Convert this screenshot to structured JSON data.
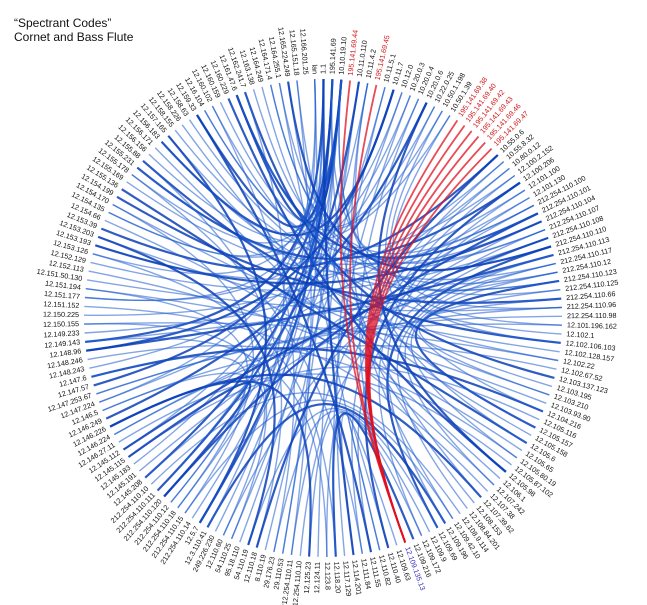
{
  "title": {
    "line1": "“Spectrant Codes”",
    "line2": "Cornet and Bass Flute"
  },
  "colors": {
    "background": "#ffffff",
    "edge_blue": "#1e5bd0",
    "edge_blue_dark": "#0b3fb8",
    "edge_red": "#e01020",
    "label_default": "#111111",
    "label_red": "#d01818",
    "label_purple": "#3a2ec0"
  },
  "nodes": [
    {
      "label": "lan",
      "color": "default"
    },
    {
      "label": "1.1",
      "color": "default"
    },
    {
      "label": "195.141.69",
      "color": "default"
    },
    {
      "label": "10.10.19.10",
      "color": "default"
    },
    {
      "label": "195.141.69.44",
      "color": "red"
    },
    {
      "label": "10.11.0.110",
      "color": "default"
    },
    {
      "label": "10.11.4.2",
      "color": "default"
    },
    {
      "label": "195.141.69.45",
      "color": "red"
    },
    {
      "label": "10.11.5.1",
      "color": "default"
    },
    {
      "label": "10.11.7",
      "color": "default"
    },
    {
      "label": "10.12.0",
      "color": "default"
    },
    {
      "label": "10.20.0.3",
      "color": "default"
    },
    {
      "label": "10.20.0.4",
      "color": "default"
    },
    {
      "label": "10.20.0.6",
      "color": "default"
    },
    {
      "label": "10.22.0.25",
      "color": "default"
    },
    {
      "label": "10.50.1.198",
      "color": "default"
    },
    {
      "label": "10.50.1.39",
      "color": "default"
    },
    {
      "label": "195.141.69.38",
      "color": "red"
    },
    {
      "label": "195.141.69.40",
      "color": "red"
    },
    {
      "label": "195.141.69.42",
      "color": "red"
    },
    {
      "label": "195.141.69.43",
      "color": "red"
    },
    {
      "label": "195.141.69.46",
      "color": "red"
    },
    {
      "label": "195.141.69.47",
      "color": "red"
    },
    {
      "label": "10.55.0.6",
      "color": "default"
    },
    {
      "label": "10.55.8.32",
      "color": "default"
    },
    {
      "label": "10.80.0.12",
      "color": "default"
    },
    {
      "label": "12.100.2.152",
      "color": "default"
    },
    {
      "label": "12.100.206",
      "color": "default"
    },
    {
      "label": "12.101.100",
      "color": "default"
    },
    {
      "label": "12.101.130",
      "color": "default"
    },
    {
      "label": "212.254.110.100",
      "color": "default"
    },
    {
      "label": "212.254.110.101",
      "color": "default"
    },
    {
      "label": "212.254.110.104",
      "color": "default"
    },
    {
      "label": "212.254.110.107",
      "color": "default"
    },
    {
      "label": "212.254.110.108",
      "color": "default"
    },
    {
      "label": "212.254.110.110",
      "color": "default"
    },
    {
      "label": "212.254.110.113",
      "color": "default"
    },
    {
      "label": "212.254.110.117",
      "color": "default"
    },
    {
      "label": "212.254.110.12",
      "color": "default"
    },
    {
      "label": "212.254.110.123",
      "color": "default"
    },
    {
      "label": "212.254.110.125",
      "color": "default"
    },
    {
      "label": "212.254.110.66",
      "color": "default"
    },
    {
      "label": "212.254.110.96",
      "color": "default"
    },
    {
      "label": "212.254.110.98",
      "color": "default"
    },
    {
      "label": "12.101.196.162",
      "color": "default"
    },
    {
      "label": "12.102.1",
      "color": "default"
    },
    {
      "label": "12.102.106.103",
      "color": "default"
    },
    {
      "label": "12.102.128.157",
      "color": "default"
    },
    {
      "label": "12.102.22",
      "color": "default"
    },
    {
      "label": "12.102.67.52",
      "color": "default"
    },
    {
      "label": "12.103.137.123",
      "color": "default"
    },
    {
      "label": "12.103.195",
      "color": "default"
    },
    {
      "label": "12.103.210",
      "color": "default"
    },
    {
      "label": "12.103.93.90",
      "color": "default"
    },
    {
      "label": "12.104.216",
      "color": "default"
    },
    {
      "label": "12.105.116",
      "color": "default"
    },
    {
      "label": "12.105.157",
      "color": "default"
    },
    {
      "label": "12.105.158",
      "color": "default"
    },
    {
      "label": "12.105.6",
      "color": "default"
    },
    {
      "label": "12.105.65",
      "color": "default"
    },
    {
      "label": "12.105.80.19",
      "color": "default"
    },
    {
      "label": "12.105.87.102",
      "color": "default"
    },
    {
      "label": "12.105.98",
      "color": "default"
    },
    {
      "label": "12.106.1",
      "color": "default"
    },
    {
      "label": "12.107.242",
      "color": "default"
    },
    {
      "label": "12.107.38",
      "color": "default"
    },
    {
      "label": "12.107.39.62",
      "color": "default"
    },
    {
      "label": "12.108.153",
      "color": "default"
    },
    {
      "label": "12.108.84.201",
      "color": "default"
    },
    {
      "label": "12.108.9.114",
      "color": "default"
    },
    {
      "label": "12.109.42.10",
      "color": "default"
    },
    {
      "label": "12.109.196",
      "color": "default"
    },
    {
      "label": "12.109.69",
      "color": "default"
    },
    {
      "label": "12.109.9",
      "color": "default"
    },
    {
      "label": "12.109.172",
      "color": "default"
    },
    {
      "label": "12.109.216",
      "color": "default"
    },
    {
      "label": "12.109.135.13",
      "color": "purple"
    },
    {
      "label": "12.109.63",
      "color": "default"
    },
    {
      "label": "12.110.40",
      "color": "default"
    },
    {
      "label": "12.110.82",
      "color": "default"
    },
    {
      "label": "12.111.55",
      "color": "default"
    },
    {
      "label": "12.111.84",
      "color": "default"
    },
    {
      "label": "12.114.201",
      "color": "default"
    },
    {
      "label": "12.117.129",
      "color": "default"
    },
    {
      "label": "12.118.20",
      "color": "default"
    },
    {
      "label": "12.123.8",
      "color": "default"
    },
    {
      "label": "12.124.11",
      "color": "default"
    },
    {
      "label": "12.125.23",
      "color": "default"
    },
    {
      "label": "212.254.110.10",
      "color": "default"
    },
    {
      "label": "212.254.110.11",
      "color": "default"
    },
    {
      "label": "29.110.53",
      "color": "default"
    },
    {
      "label": "29.176.23",
      "color": "default"
    },
    {
      "label": "8.110.19",
      "color": "default"
    },
    {
      "label": "12.110.18",
      "color": "default"
    },
    {
      "label": "54.110.19",
      "color": "default"
    },
    {
      "label": "95.18.110",
      "color": "default"
    },
    {
      "label": "54.110.25",
      "color": "default"
    },
    {
      "label": "12.110.60",
      "color": "default"
    },
    {
      "label": "249.226.230",
      "color": "default"
    },
    {
      "label": "12.3.110.41",
      "color": "default"
    },
    {
      "label": "12.5.7",
      "color": "default"
    },
    {
      "label": "212.254.110.14",
      "color": "default"
    },
    {
      "label": "212.254.110.15",
      "color": "default"
    },
    {
      "label": "212.254.110.18",
      "color": "default"
    },
    {
      "label": "212.254.110.12",
      "color": "default"
    },
    {
      "label": "212.254.110.120",
      "color": "default"
    },
    {
      "label": "212.254.110.111",
      "color": "default"
    },
    {
      "label": "212.254.110.10",
      "color": "default"
    },
    {
      "label": "12.145.208",
      "color": "default"
    },
    {
      "label": "12.145.191",
      "color": "default"
    },
    {
      "label": "12.145.183",
      "color": "default"
    },
    {
      "label": "12.145.115",
      "color": "default"
    },
    {
      "label": "12.145.112",
      "color": "default"
    },
    {
      "label": "12.146.27.11",
      "color": "default"
    },
    {
      "label": "12.146.224",
      "color": "default"
    },
    {
      "label": "12.146.226",
      "color": "default"
    },
    {
      "label": "12.146.249",
      "color": "default"
    },
    {
      "label": "12.146.5",
      "color": "default"
    },
    {
      "label": "12.147.224",
      "color": "default"
    },
    {
      "label": "12.147.253.67",
      "color": "default"
    },
    {
      "label": "12.147.57",
      "color": "default"
    },
    {
      "label": "12.147.6",
      "color": "default"
    },
    {
      "label": "12.148.243",
      "color": "default"
    },
    {
      "label": "12.148.246",
      "color": "default"
    },
    {
      "label": "12.148.96",
      "color": "default"
    },
    {
      "label": "12.149.143",
      "color": "default"
    },
    {
      "label": "12.149.233",
      "color": "default"
    },
    {
      "label": "12.150.155",
      "color": "default"
    },
    {
      "label": "12.150.225",
      "color": "default"
    },
    {
      "label": "12.151.152",
      "color": "default"
    },
    {
      "label": "12.151.177",
      "color": "default"
    },
    {
      "label": "12.151.194",
      "color": "default"
    },
    {
      "label": "12.151.50.130",
      "color": "default"
    },
    {
      "label": "12.152.113",
      "color": "default"
    },
    {
      "label": "12.152.129",
      "color": "default"
    },
    {
      "label": "12.153.126",
      "color": "default"
    },
    {
      "label": "12.153.193",
      "color": "default"
    },
    {
      "label": "12.153.203",
      "color": "default"
    },
    {
      "label": "12.153.39",
      "color": "default"
    },
    {
      "label": "12.154.66",
      "color": "default"
    },
    {
      "label": "12.154.135",
      "color": "default"
    },
    {
      "label": "12.154.170",
      "color": "default"
    },
    {
      "label": "12.154.199",
      "color": "default"
    },
    {
      "label": "12.155.136",
      "color": "default"
    },
    {
      "label": "12.155.169",
      "color": "default"
    },
    {
      "label": "12.155.178",
      "color": "default"
    },
    {
      "label": "12.155.231",
      "color": "default"
    },
    {
      "label": "12.155.88",
      "color": "default"
    },
    {
      "label": "12.156.156",
      "color": "default"
    },
    {
      "label": "12.156.171",
      "color": "default"
    },
    {
      "label": "12.156.183",
      "color": "default"
    },
    {
      "label": "12.157.165",
      "color": "default"
    },
    {
      "label": "12.158.155",
      "color": "default"
    },
    {
      "label": "12.158.226",
      "color": "default"
    },
    {
      "label": "12.158.63",
      "color": "default"
    },
    {
      "label": "12.159.33",
      "color": "default"
    },
    {
      "label": "12.16.104",
      "color": "default"
    },
    {
      "label": "12.160.102",
      "color": "default"
    },
    {
      "label": "12.160.159",
      "color": "default"
    },
    {
      "label": "12.160.229",
      "color": "default"
    },
    {
      "label": "12.161.47.6",
      "color": "default"
    },
    {
      "label": "12.162.241.7",
      "color": "default"
    },
    {
      "label": "12.163.138",
      "color": "default"
    },
    {
      "label": "12.164.249",
      "color": "default"
    },
    {
      "label": "12.164.171.4",
      "color": "default"
    },
    {
      "label": "12.164.255.1",
      "color": "default"
    },
    {
      "label": "12.165.224.249",
      "color": "default"
    },
    {
      "label": "12.165.151.18",
      "color": "default"
    },
    {
      "label": "12.166.201.25",
      "color": "default"
    }
  ],
  "edges": [
    [
      3,
      108
    ],
    [
      3,
      112
    ],
    [
      3,
      95
    ],
    [
      3,
      90
    ],
    [
      3,
      120
    ],
    [
      3,
      130
    ],
    [
      3,
      140
    ],
    [
      3,
      150
    ],
    [
      3,
      160
    ],
    [
      3,
      166
    ],
    [
      3,
      40
    ],
    [
      3,
      44
    ],
    [
      2,
      100
    ],
    [
      2,
      104
    ],
    [
      2,
      110
    ],
    [
      2,
      145
    ],
    [
      2,
      155
    ],
    [
      2,
      35
    ],
    [
      1,
      98
    ],
    [
      1,
      101
    ],
    [
      1,
      125
    ],
    [
      1,
      135
    ],
    [
      5,
      86
    ],
    [
      5,
      92
    ],
    [
      5,
      106
    ],
    [
      6,
      103
    ],
    [
      6,
      70
    ],
    [
      8,
      83
    ],
    [
      9,
      150
    ],
    [
      10,
      140
    ],
    [
      11,
      130
    ],
    [
      12,
      122
    ],
    [
      13,
      116
    ],
    [
      14,
      162
    ],
    [
      15,
      158
    ],
    [
      16,
      148
    ],
    [
      23,
      138
    ],
    [
      24,
      128
    ],
    [
      25,
      118
    ],
    [
      26,
      156
    ],
    [
      27,
      146
    ],
    [
      28,
      136
    ],
    [
      29,
      126
    ],
    [
      30,
      165
    ],
    [
      31,
      160
    ],
    [
      32,
      152
    ],
    [
      33,
      144
    ],
    [
      34,
      134
    ],
    [
      36,
      124
    ],
    [
      37,
      114
    ],
    [
      38,
      164
    ],
    [
      39,
      154
    ],
    [
      41,
      142
    ],
    [
      42,
      132
    ],
    [
      43,
      119
    ],
    [
      30,
      109
    ],
    [
      31,
      105
    ],
    [
      32,
      97
    ],
    [
      33,
      88
    ],
    [
      34,
      80
    ],
    [
      35,
      72
    ],
    [
      36,
      68
    ],
    [
      37,
      64
    ],
    [
      38,
      60
    ],
    [
      39,
      56
    ],
    [
      40,
      52
    ],
    [
      41,
      48
    ],
    [
      45,
      157
    ],
    [
      46,
      147
    ],
    [
      47,
      137
    ],
    [
      48,
      127
    ],
    [
      49,
      117
    ],
    [
      50,
      161
    ],
    [
      51,
      151
    ],
    [
      52,
      141
    ],
    [
      53,
      131
    ],
    [
      54,
      121
    ],
    [
      55,
      111
    ],
    [
      56,
      163
    ],
    [
      57,
      153
    ],
    [
      58,
      143
    ],
    [
      59,
      133
    ],
    [
      60,
      123
    ],
    [
      61,
      113
    ],
    [
      62,
      159
    ],
    [
      63,
      149
    ],
    [
      64,
      139
    ],
    [
      65,
      129
    ],
    [
      66,
      115
    ],
    [
      67,
      167
    ],
    [
      69,
      107
    ],
    [
      70,
      102
    ],
    [
      71,
      99
    ],
    [
      72,
      94
    ],
    [
      73,
      91
    ],
    [
      74,
      87
    ],
    [
      75,
      84
    ],
    [
      77,
      82
    ],
    [
      78,
      79
    ],
    [
      79,
      165
    ],
    [
      80,
      155
    ],
    [
      81,
      145
    ],
    [
      84,
      135
    ],
    [
      85,
      125
    ],
    [
      87,
      115
    ],
    [
      89,
      167
    ],
    [
      91,
      157
    ],
    [
      93,
      147
    ],
    [
      94,
      137
    ],
    [
      96,
      127
    ],
    [
      97,
      117
    ],
    [
      99,
      161
    ],
    [
      100,
      151
    ],
    [
      102,
      141
    ],
    [
      103,
      131
    ],
    [
      104,
      121
    ],
    [
      105,
      111
    ],
    [
      0,
      90
    ],
    [
      0,
      106
    ],
    [
      0,
      118
    ],
    [
      1,
      82
    ],
    [
      2,
      66
    ],
    [
      6,
      58
    ],
    [
      8,
      100
    ],
    [
      9,
      124
    ],
    [
      10,
      96
    ],
    [
      11,
      84
    ],
    [
      12,
      76
    ],
    [
      13,
      62
    ],
    [
      14,
      54
    ],
    [
      15,
      46
    ],
    [
      16,
      42
    ],
    [
      23,
      93
    ],
    [
      24,
      89
    ],
    [
      25,
      85
    ],
    [
      26,
      81
    ],
    [
      27,
      78
    ],
    [
      28,
      74
    ],
    [
      29,
      71
    ],
    [
      108,
      36
    ],
    [
      112,
      34
    ],
    [
      114,
      42
    ],
    [
      119,
      44
    ],
    [
      125,
      38
    ],
    [
      136,
      32
    ],
    [
      146,
      30
    ],
    [
      156,
      31
    ],
    [
      164,
      33
    ],
    [
      166,
      35
    ],
    [
      160,
      37
    ],
    [
      150,
      39
    ]
  ],
  "red_edges": [
    [
      4,
      76
    ],
    [
      7,
      76
    ],
    [
      17,
      76
    ],
    [
      18,
      76
    ],
    [
      19,
      76
    ],
    [
      20,
      76
    ],
    [
      21,
      76
    ],
    [
      22,
      76
    ]
  ]
}
